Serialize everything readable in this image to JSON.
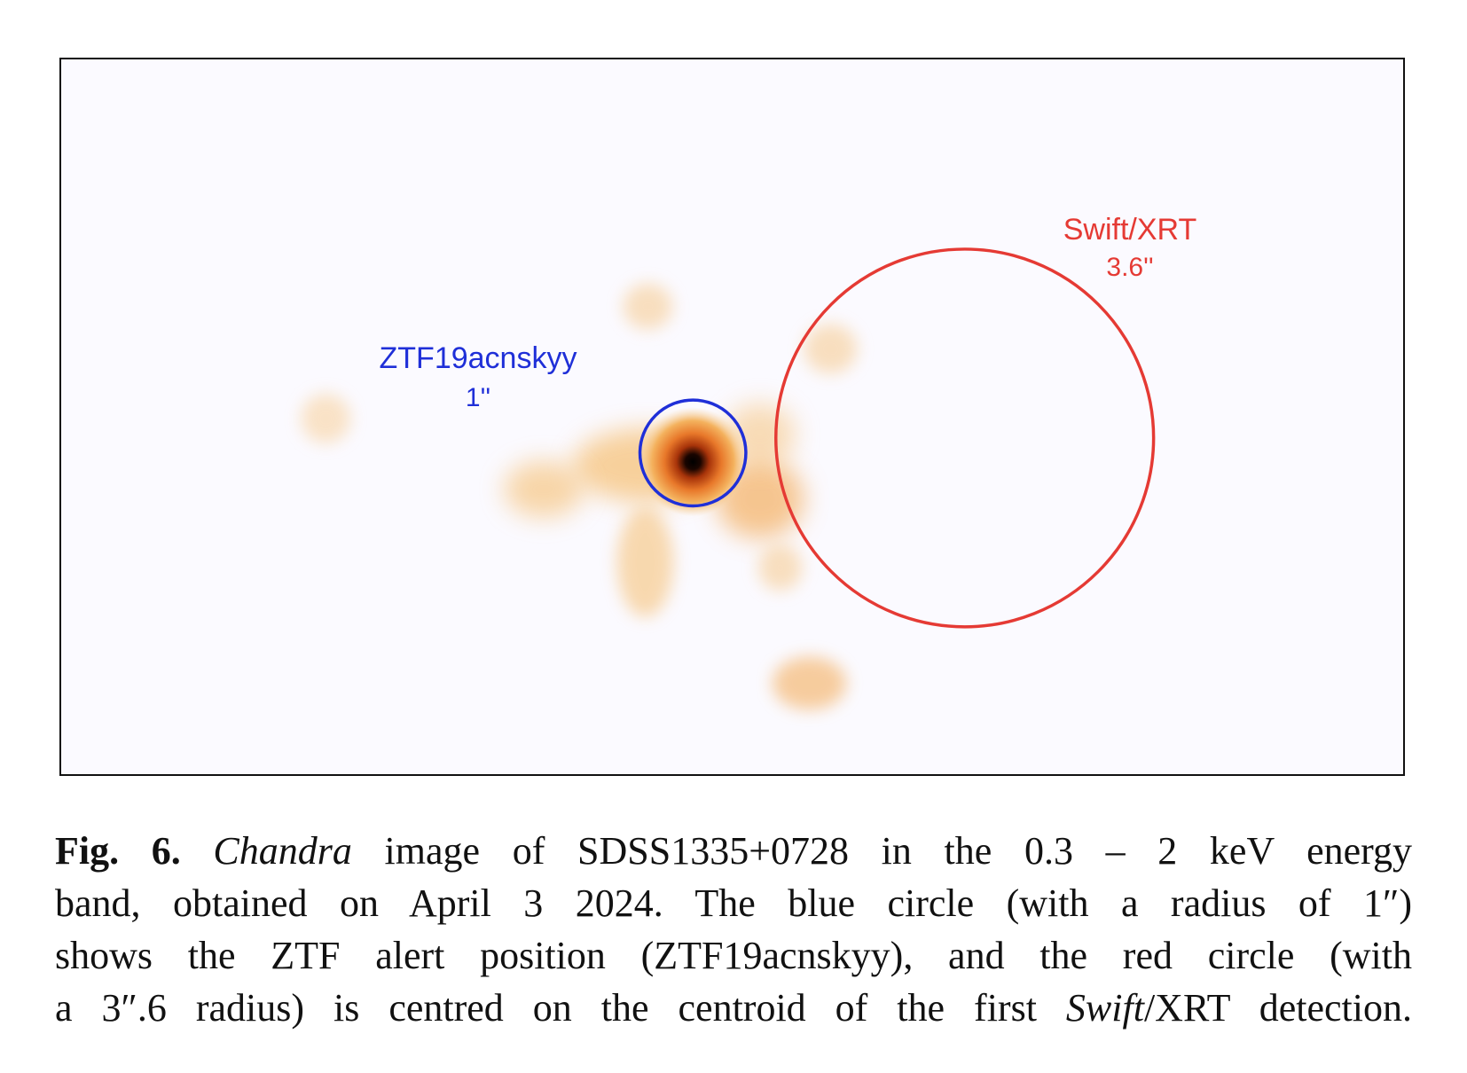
{
  "figure": {
    "colors": {
      "background": "#fbfaff",
      "ztf_circle": "#1f2fd8",
      "swift_circle": "#e53a34",
      "emission_faint": "#f6c27a",
      "emission_mid": "#e8782a",
      "emission_core": "#000000"
    },
    "labels": {
      "ztf_name": "ZTF19acnskyy",
      "ztf_radius": "1''",
      "swift_name": "Swift/XRT",
      "swift_radius": "3.6''"
    }
  },
  "caption": {
    "label": "Fig. 6.",
    "line1_italic": "Chandra",
    "line1_rest": " image of SDSS1335+0728 in the 0.3 – 2 keV energy",
    "line2": "band, obtained on April 3 2024. The blue circle (with a radius of 1″)",
    "line3": "shows the ZTF alert position (ZTF19acnskyy), and the red circle (with",
    "line4_start": "a 3″.6 radius) is centred on the centroid of the first ",
    "line4_italic": "Swift",
    "line4_end": "/XRT detection."
  }
}
